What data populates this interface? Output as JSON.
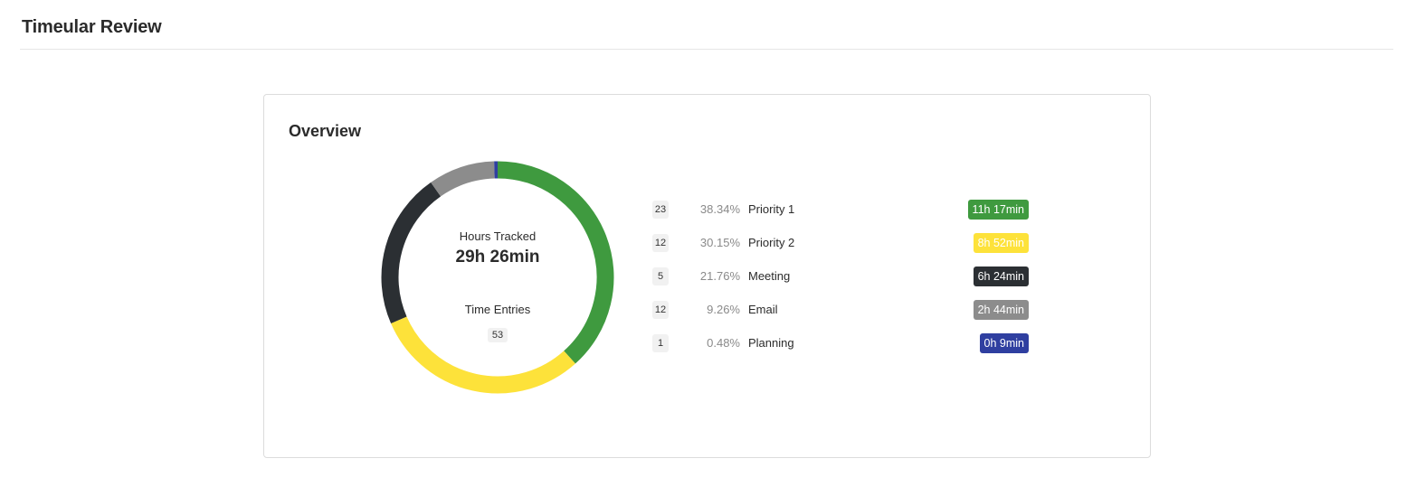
{
  "header": {
    "title": "Timeular Review"
  },
  "overview": {
    "title": "Overview",
    "hours_tracked_label": "Hours Tracked",
    "hours_tracked_value": "29h 26min",
    "time_entries_label": "Time Entries",
    "time_entries_value": "53"
  },
  "colors": {
    "priority1": "#3f9a3f",
    "priority2": "#fde23a",
    "meeting": "#2b2f33",
    "email": "#8c8c8c",
    "planning": "#2f3fa0"
  },
  "chart_data": {
    "type": "pie",
    "categories": [
      "Priority 1",
      "Priority 2",
      "Meeting",
      "Email",
      "Planning"
    ],
    "values": [
      38.34,
      30.15,
      21.76,
      9.26,
      0.48
    ]
  },
  "activities": [
    {
      "count": "23",
      "percent": "38.34%",
      "name": "Priority 1",
      "duration": "11h 17min",
      "color": "#3f9a3f"
    },
    {
      "count": "12",
      "percent": "30.15%",
      "name": "Priority 2",
      "duration": "8h 52min",
      "color": "#fde23a"
    },
    {
      "count": "5",
      "percent": "21.76%",
      "name": "Meeting",
      "duration": "6h 24min",
      "color": "#2b2f33"
    },
    {
      "count": "12",
      "percent": "9.26%",
      "name": "Email",
      "duration": "2h 44min",
      "color": "#8c8c8c"
    },
    {
      "count": "1",
      "percent": "0.48%",
      "name": "Planning",
      "duration": "0h 9min",
      "color": "#2f3fa0"
    }
  ]
}
